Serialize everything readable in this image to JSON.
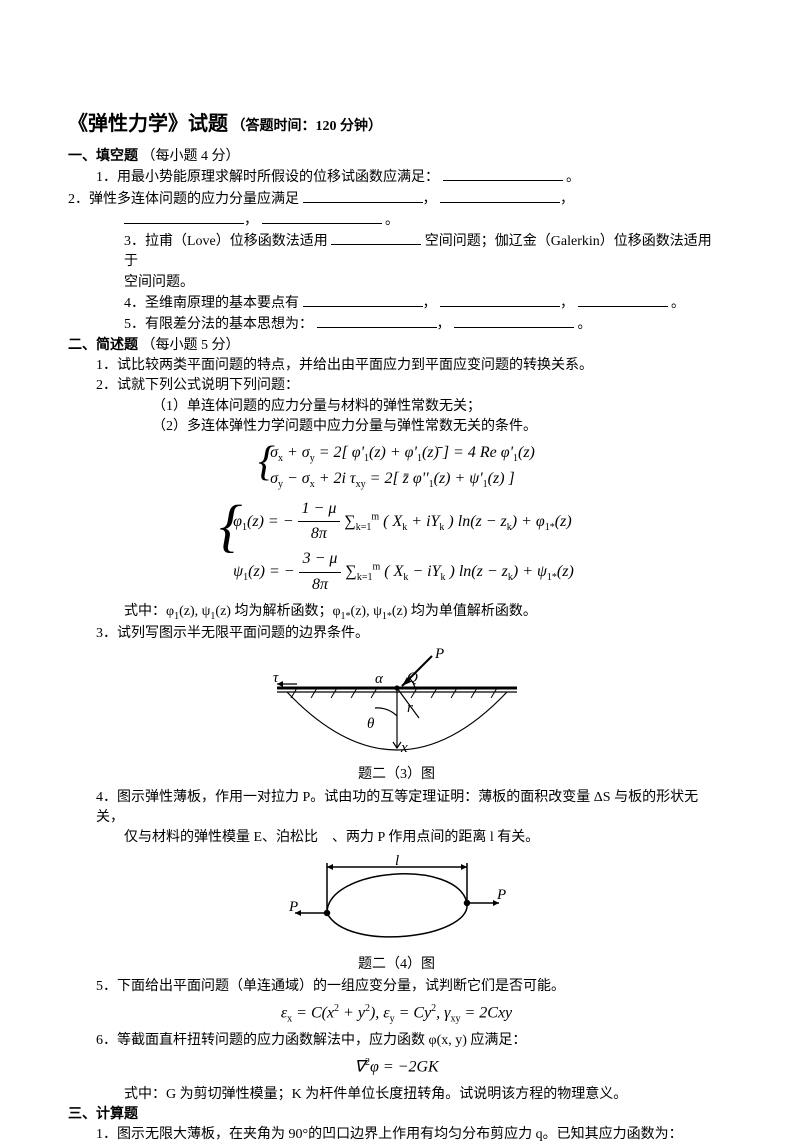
{
  "title": {
    "main": "《弹性力学》试题",
    "sub": "（答题时间：120 分钟）"
  },
  "sec1": {
    "head": "一、填空题",
    "points": "（每小题 4 分）",
    "q1": "1．用最小势能原理求解时所假设的位移试函数应满足：",
    "q2a": "2．弹性多连体问题的应力分量应满足",
    "q3a": "3．拉甫（Love）位移函数法适用",
    "q3b": "空间问题；伽辽金（Galerkin）位移函数法适用于",
    "q3c": "空间问题。",
    "q4": "4．圣维南原理的基本要点有",
    "q5": "5．有限差分法的基本思想为："
  },
  "sec2": {
    "head": "二、简述题",
    "points": "（每小题 5 分）",
    "q1": "1．试比较两类平面问题的特点，并给出由平面应力到平面应变问题的转换关系。",
    "q2": "2．试就下列公式说明下列问题：",
    "q2_1": "（1）单连体问题的应力分量与材料的弹性常数无关；",
    "q2_2": "（2）多连体弹性力学问题中应力分量与弹性常数无关的条件。",
    "eq_line1": "σ<sub>x</sub> + σ<sub>y</sub> = 2[ φ'<sub>1</sub>(z) + φ'<sub>1</sub>(z)̄ ] = 4 Re φ'<sub>1</sub>(z)",
    "eq_line2": "σ<sub>y</sub> − σ<sub>x</sub> + 2i τ<sub>xy</sub> = 2[ z̄ φ''<sub>1</sub>(z) + ψ'<sub>1</sub>(z) ]",
    "eq_line3_pre": "φ<sub>1</sub>(z) = −",
    "eq_line3_frac_top": "1 − μ",
    "eq_line3_frac_bot": "8π",
    "eq_line3_post": " ∑<sub>k=1</sub><sup>m</sup> ( X<sub>k</sub> + iY<sub>k</sub> ) ln(z − z<sub>k</sub>) + φ<sub>1*</sub>(z)",
    "eq_line4_pre": "ψ<sub>1</sub>(z) = −",
    "eq_line4_frac_top": "3 − μ",
    "eq_line4_frac_bot": "8π",
    "eq_line4_post": " ∑<sub>k=1</sub><sup>m</sup> ( X<sub>k</sub> − iY<sub>k</sub> ) ln(z − z<sub>k</sub>) + ψ<sub>1*</sub>(z)",
    "q2_note": "式中：φ<sub>1</sub>(z), ψ<sub>1</sub>(z) 均为解析函数；φ<sub>1*</sub>(z), ψ<sub>1*</sub>(z) 均为单值解析函数。",
    "q3": "3．试列写图示半无限平面问题的边界条件。",
    "fig3": {
      "caption": "题二（3）图",
      "labels": {
        "P": "P",
        "Q": "Q",
        "alpha": "α",
        "tau": "τ",
        "r": "r",
        "theta": "θ",
        "x": "x"
      },
      "colors": {
        "line": "#000",
        "arrow": "#000"
      }
    },
    "q4a": "4．图示弹性薄板，作用一对拉力 P。试由功的互等定理证明：薄板的面积改变量 ΔS 与板的形状无关，",
    "q4b": "仅与材料的弹性模量 E、泊松比　、两力 P 作用点间的距离 l 有关。",
    "fig4": {
      "caption": "题二（4）图",
      "labels": {
        "P": "P",
        "l": "l"
      },
      "colors": {
        "line": "#000"
      }
    },
    "q5": "5．下面给出平面问题（单连通域）的一组应变分量，试判断它们是否可能。",
    "q5_eq": "ε<sub>x</sub> = C(x<sup>2</sup> + y<sup>2</sup>),  ε<sub>y</sub> = Cy<sup>2</sup>,  γ<sub>xy</sub> = 2Cxy",
    "q6": "6．等截面直杆扭转问题的应力函数解法中，应力函数 φ(x, y) 应满足：",
    "q6_eq": "∇<sup>2</sup>φ = −2GK",
    "q6_note": "式中：G 为剪切弹性模量；K 为杆件单位长度扭转角。试说明该方程的物理意义。"
  },
  "sec3": {
    "head": "三、计算题",
    "q1": "1．图示无限大薄板，在夹角为 90°的凹口边界上作用有均匀分布剪应力 q。已知其应力函数为："
  },
  "punct": {
    "comma": "，",
    "period": "。"
  }
}
